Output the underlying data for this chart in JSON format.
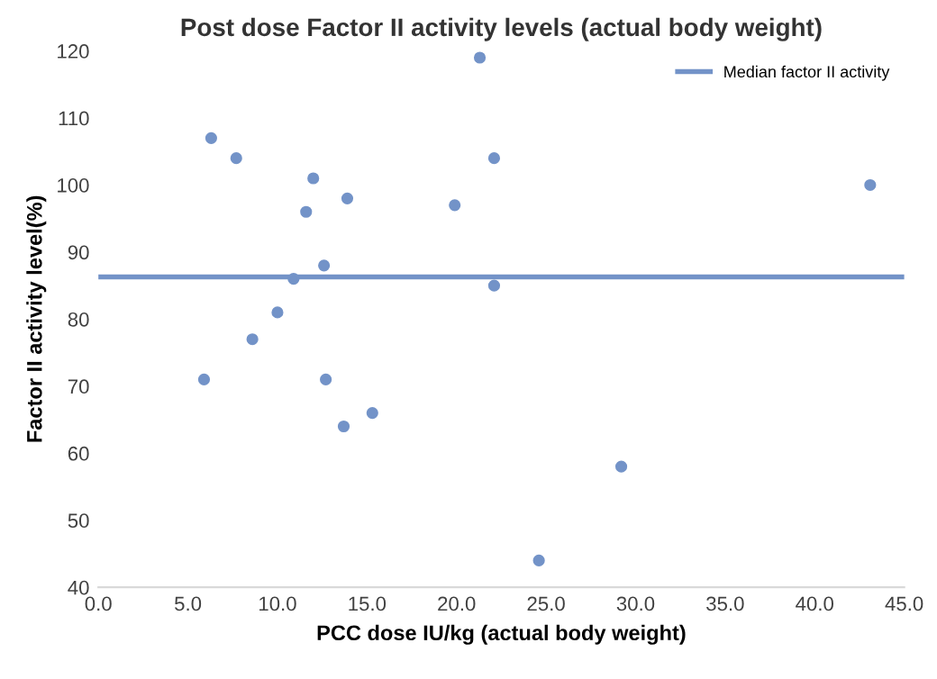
{
  "chart_data": {
    "type": "scatter",
    "title": "Post dose Factor II activity levels (actual body weight)",
    "xlabel": "PCC dose IU/kg (actual body weight)",
    "ylabel": "Factor II activity level(%)",
    "series": [
      {
        "color": "#7393c8",
        "x": [
          6.3,
          7.7,
          12.0,
          13.9,
          11.6,
          19.9,
          21.3,
          22.1,
          12.6,
          10.9,
          22.1,
          10.0,
          8.6,
          5.9,
          12.7,
          15.3,
          13.7,
          43.1,
          24.6,
          29.2
        ],
        "values": [
          107,
          104,
          101,
          98,
          96,
          97,
          119,
          104,
          88,
          86,
          85,
          81,
          77,
          71,
          71,
          66,
          64,
          100,
          44,
          58
        ]
      }
    ],
    "ref_lines": [
      {
        "axis": "y",
        "value": 86.3,
        "label": "Median factor II activity",
        "color": "#7393c8"
      }
    ],
    "xlim": [
      0,
      45
    ],
    "xticks": [
      {
        "value": 0,
        "label": "0.0"
      },
      {
        "value": 5,
        "label": "5.0"
      },
      {
        "value": 10,
        "label": "10.0"
      },
      {
        "value": 15,
        "label": "15.0"
      },
      {
        "value": 20,
        "label": "20.0"
      },
      {
        "value": 25,
        "label": "25.0"
      },
      {
        "value": 30,
        "label": "30.0"
      },
      {
        "value": 35,
        "label": "35.0"
      },
      {
        "value": 40,
        "label": "40.0"
      },
      {
        "value": 45,
        "label": "45.0"
      }
    ],
    "ylim": [
      40,
      120
    ],
    "yticks": [
      40,
      50,
      60,
      70,
      80,
      90,
      100,
      110,
      120
    ],
    "legend": "top right",
    "grid": false,
    "marker": "circle"
  }
}
